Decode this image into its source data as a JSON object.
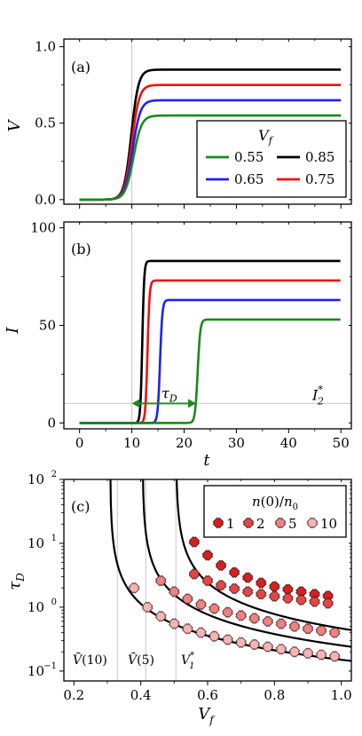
{
  "chart_data": [
    {
      "panel": "(a)",
      "type": "line",
      "xlabel": "",
      "ylabel": "V",
      "xlim": [
        -3,
        52
      ],
      "ylim": [
        -0.03,
        1.05
      ],
      "xticks": [
        0,
        10,
        20,
        30,
        40,
        50
      ],
      "yticks": [
        0.0,
        0.5,
        1.0
      ],
      "ytick_labels": [
        "0.0",
        "0.5",
        "1.0"
      ],
      "vline": 10,
      "legend": {
        "title": "V_f",
        "title_main": "V",
        "title_sub": "f",
        "placement": "lower-right",
        "entries": [
          "0.55",
          "0.85",
          "0.65",
          "0.75"
        ]
      },
      "series": [
        {
          "name": "0.55",
          "color": "#1a8a1a",
          "plateau": 0.55,
          "t0": 10.3,
          "k": 1.3
        },
        {
          "name": "0.65",
          "color": "#1f22ee",
          "plateau": 0.65,
          "t0": 10.15,
          "k": 1.35
        },
        {
          "name": "0.75",
          "color": "#ee1111",
          "plateau": 0.75,
          "t0": 10.0,
          "k": 1.4
        },
        {
          "name": "0.85",
          "color": "#000000",
          "plateau": 0.85,
          "t0": 9.9,
          "k": 1.45
        }
      ]
    },
    {
      "panel": "(b)",
      "type": "line",
      "xlabel": "t",
      "ylabel": "I",
      "xlim": [
        -3,
        52
      ],
      "ylim": [
        -3,
        103
      ],
      "xticks": [
        0,
        10,
        20,
        30,
        40,
        50
      ],
      "xtick_labels": [
        "0",
        "10",
        "20",
        "30",
        "40",
        "50"
      ],
      "yticks": [
        0,
        50,
        100
      ],
      "ytick_labels": [
        "0",
        "50",
        "100"
      ],
      "vline": 10,
      "hline": 10,
      "hline_label": "I_2^*",
      "hline_label_main": "I",
      "hline_label_sub": "2",
      "hline_label_sup": "*",
      "annotation": {
        "text": "τ_D",
        "main": "τ",
        "sub": "D",
        "x_start": 10,
        "x_end": 22.3,
        "y": 10,
        "color": "#1a8a1a"
      },
      "series": [
        {
          "name": "0.55",
          "color": "#1a8a1a",
          "plateau": 53,
          "t0": 22.6,
          "k": 4.0
        },
        {
          "name": "0.65",
          "color": "#1f22ee",
          "plateau": 63,
          "t0": 15.4,
          "k": 4.5
        },
        {
          "name": "0.75",
          "color": "#ee1111",
          "plateau": 73,
          "t0": 13.0,
          "k": 5.0
        },
        {
          "name": "0.85",
          "color": "#000000",
          "plateau": 83,
          "t0": 12.0,
          "k": 5.5
        }
      ]
    },
    {
      "panel": "(c)",
      "type": "scatter",
      "xlabel": "V_f",
      "xlabel_main": "V",
      "xlabel_sub": "f",
      "ylabel": "τ_D",
      "ylabel_main": "τ",
      "ylabel_sub": "D",
      "xlim": [
        0.17,
        1.03
      ],
      "ylim": [
        0.07,
        100
      ],
      "yscale": "log",
      "xticks": [
        0.2,
        0.4,
        0.6,
        0.8,
        1.0
      ],
      "xtick_labels": [
        "0.2",
        "0.4",
        "0.6",
        "0.8",
        "1.0"
      ],
      "yticks": [
        0.1,
        1,
        10,
        100
      ],
      "ytick_labels": [
        "10",
        "10",
        "10",
        "10"
      ],
      "ytick_exponents": [
        "−1",
        "0",
        "1",
        "2"
      ],
      "vlines": [
        {
          "x": 0.33,
          "label": "V̄(10)",
          "main": "V̄",
          "rest": "(10)"
        },
        {
          "x": 0.415,
          "label": "V̄(5)",
          "main": "V̄",
          "rest": "(5)"
        },
        {
          "x": 0.505,
          "label": "V_1^*",
          "main": "V",
          "sub": "1",
          "sup": "*"
        }
      ],
      "curves": [
        {
          "vc": 0.308,
          "A": 0.52
        },
        {
          "vc": 0.405,
          "A": 0.75
        },
        {
          "vc": 0.505,
          "A": 1.15
        }
      ],
      "legend": {
        "title": "n(0)/n_0",
        "title_a": "n",
        "title_b": "(0)/",
        "title_c": "n",
        "title_sub": "0",
        "placement": "upper-right",
        "entries": [
          "1",
          "2",
          "5",
          "10"
        ]
      },
      "series": [
        {
          "name": "1",
          "color": "#d42020",
          "x": [
            0.56,
            0.6,
            0.64,
            0.68,
            0.72,
            0.76,
            0.8,
            0.84,
            0.88,
            0.92,
            0.96
          ],
          "y": [
            10.5,
            6.5,
            4.5,
            3.5,
            2.9,
            2.4,
            2.1,
            1.9,
            1.75,
            1.6,
            1.5
          ]
        },
        {
          "name": "2",
          "color": "#e04848",
          "x": [
            0.56,
            0.6,
            0.64,
            0.68,
            0.72,
            0.76,
            0.8,
            0.84,
            0.88,
            0.92,
            0.96
          ],
          "y": [
            3.3,
            2.6,
            2.2,
            1.95,
            1.75,
            1.6,
            1.48,
            1.38,
            1.3,
            1.22,
            1.15
          ]
        },
        {
          "name": "5",
          "color": "#ec8282",
          "x": [
            0.46,
            0.5,
            0.54,
            0.58,
            0.62,
            0.66,
            0.7,
            0.74,
            0.78,
            0.82,
            0.86,
            0.9,
            0.94,
            0.98
          ],
          "y": [
            2.6,
            1.75,
            1.35,
            1.1,
            0.95,
            0.83,
            0.74,
            0.67,
            0.6,
            0.55,
            0.5,
            0.46,
            0.43,
            0.4
          ]
        },
        {
          "name": "10",
          "color": "#f4b4b4",
          "x": [
            0.38,
            0.42,
            0.46,
            0.5,
            0.54,
            0.58,
            0.62,
            0.66,
            0.7,
            0.74,
            0.78,
            0.82,
            0.86,
            0.9,
            0.94,
            0.98
          ],
          "y": [
            2.0,
            1.0,
            0.72,
            0.55,
            0.46,
            0.4,
            0.35,
            0.31,
            0.28,
            0.26,
            0.24,
            0.22,
            0.2,
            0.19,
            0.18,
            0.17
          ]
        }
      ]
    }
  ]
}
